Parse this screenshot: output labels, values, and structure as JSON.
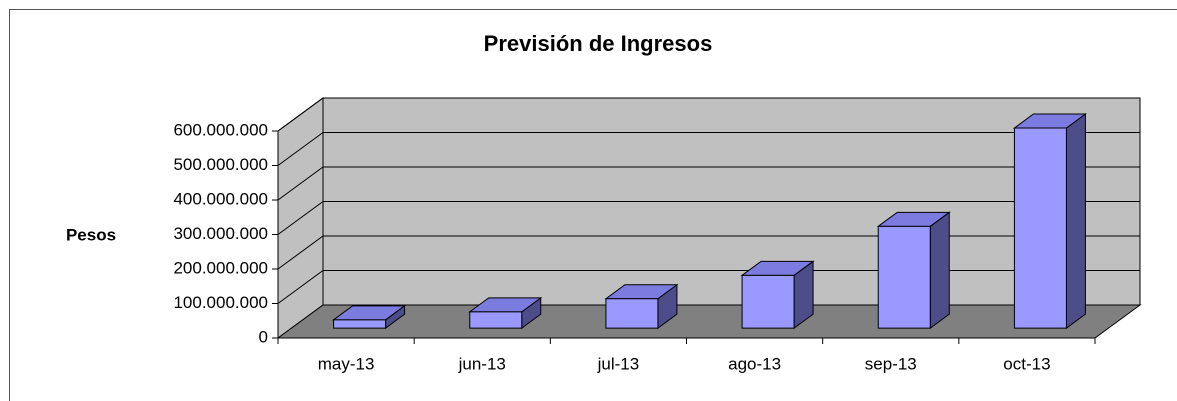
{
  "chart_data": {
    "type": "bar",
    "title": "Previsión de Ingresos",
    "ylabel": "Pesos",
    "categories": [
      "may-13",
      "jun-13",
      "jul-13",
      "ago-13",
      "sep-13",
      "oct-13"
    ],
    "values": [
      24000000,
      47000000,
      85000000,
      153000000,
      295000000,
      580000000
    ],
    "color": "#9999ff",
    "ylim": [
      0,
      600000000
    ],
    "yticks": [
      0,
      {
        "value": 100000000,
        "label": "100.000.000"
      },
      {
        "value": 200000000,
        "label": "200.000.000"
      },
      {
        "value": 300000000,
        "label": "300.000.000"
      },
      {
        "value": 400000000,
        "label": "400.000.000"
      },
      {
        "value": 500000000,
        "label": "500.000.000"
      },
      {
        "value": 600000000,
        "label": "600.000.000"
      }
    ],
    "grid": true
  }
}
